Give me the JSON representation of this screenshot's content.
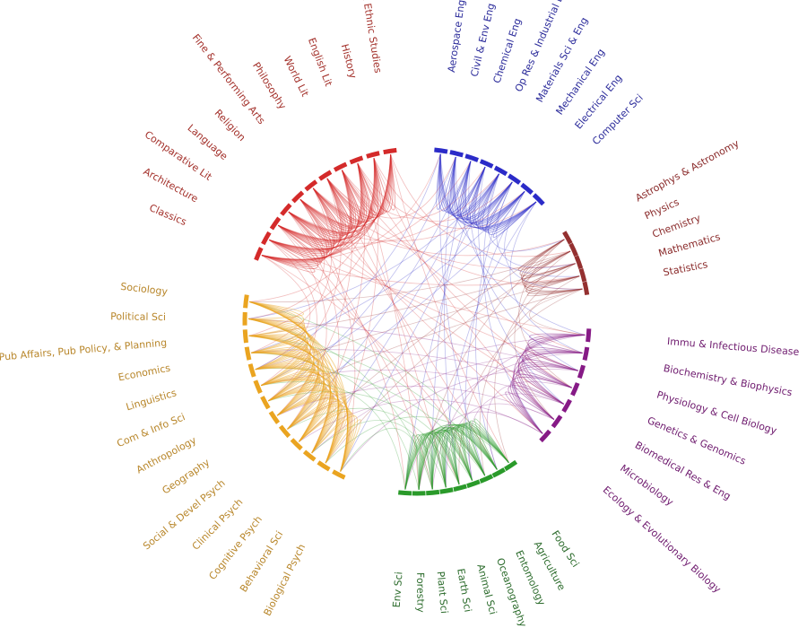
{
  "groups": [
    {
      "color": "#d42a2a",
      "label_color": "#a3302a",
      "nodes": [
        "Classics",
        "Architecture",
        "Comparative Lit",
        "Language",
        "Religion",
        "Fine & Performing Arts",
        "Philosophy",
        "World Lit",
        "English Lit",
        "History",
        "& Ethnic Studies"
      ]
    },
    {
      "color": "#2b2bc8",
      "label_color": "#2a2a9a",
      "nodes": [
        "Aerospace Eng",
        "Civil & Env Eng",
        "Chemical Eng",
        "Op Res & Industrial E",
        "Materials Sci & Eng",
        "Mechanical Eng",
        "Electrical Eng",
        "Computer Sci"
      ]
    },
    {
      "color": "#943030",
      "label_color": "#8a2a2a",
      "nodes": [
        "Astrophys & Astronomy",
        "Physics",
        "Chemistry",
        "Mathematics",
        "Statistics"
      ]
    },
    {
      "color": "#861a86",
      "label_color": "#6e1a6e",
      "nodes": [
        "Immu & Infectious Disease",
        "Biochemistry & Biophysics",
        "Physiology & Cell Biology",
        "Genetics & Genomics",
        "Biomedical Res & Eng",
        "Microbiology",
        "Ecology & Evolutionary Biology"
      ]
    },
    {
      "color": "#2a9a2a",
      "label_color": "#2a6a2a",
      "nodes": [
        "Food Sci",
        "Agriculture",
        "Entomology",
        "Oceanography &",
        "Animal Sci",
        "Earth Sci",
        "Plant Sci",
        "Forestry",
        "Env Sci"
      ]
    },
    {
      "color": "#eaa420",
      "label_color": "#b8862a",
      "nodes": [
        "Sociology",
        "Political Sci",
        "Pub Affairs, Pub Policy, & Planning",
        "Economics",
        "Linguistics",
        "Com & Info Sci",
        "Anthropology",
        "Geography",
        "Social & Devel Psych",
        "Clinical Psych",
        "Cognitive Psych",
        "Behavioral Sci",
        "Biological Psych"
      ]
    }
  ]
}
